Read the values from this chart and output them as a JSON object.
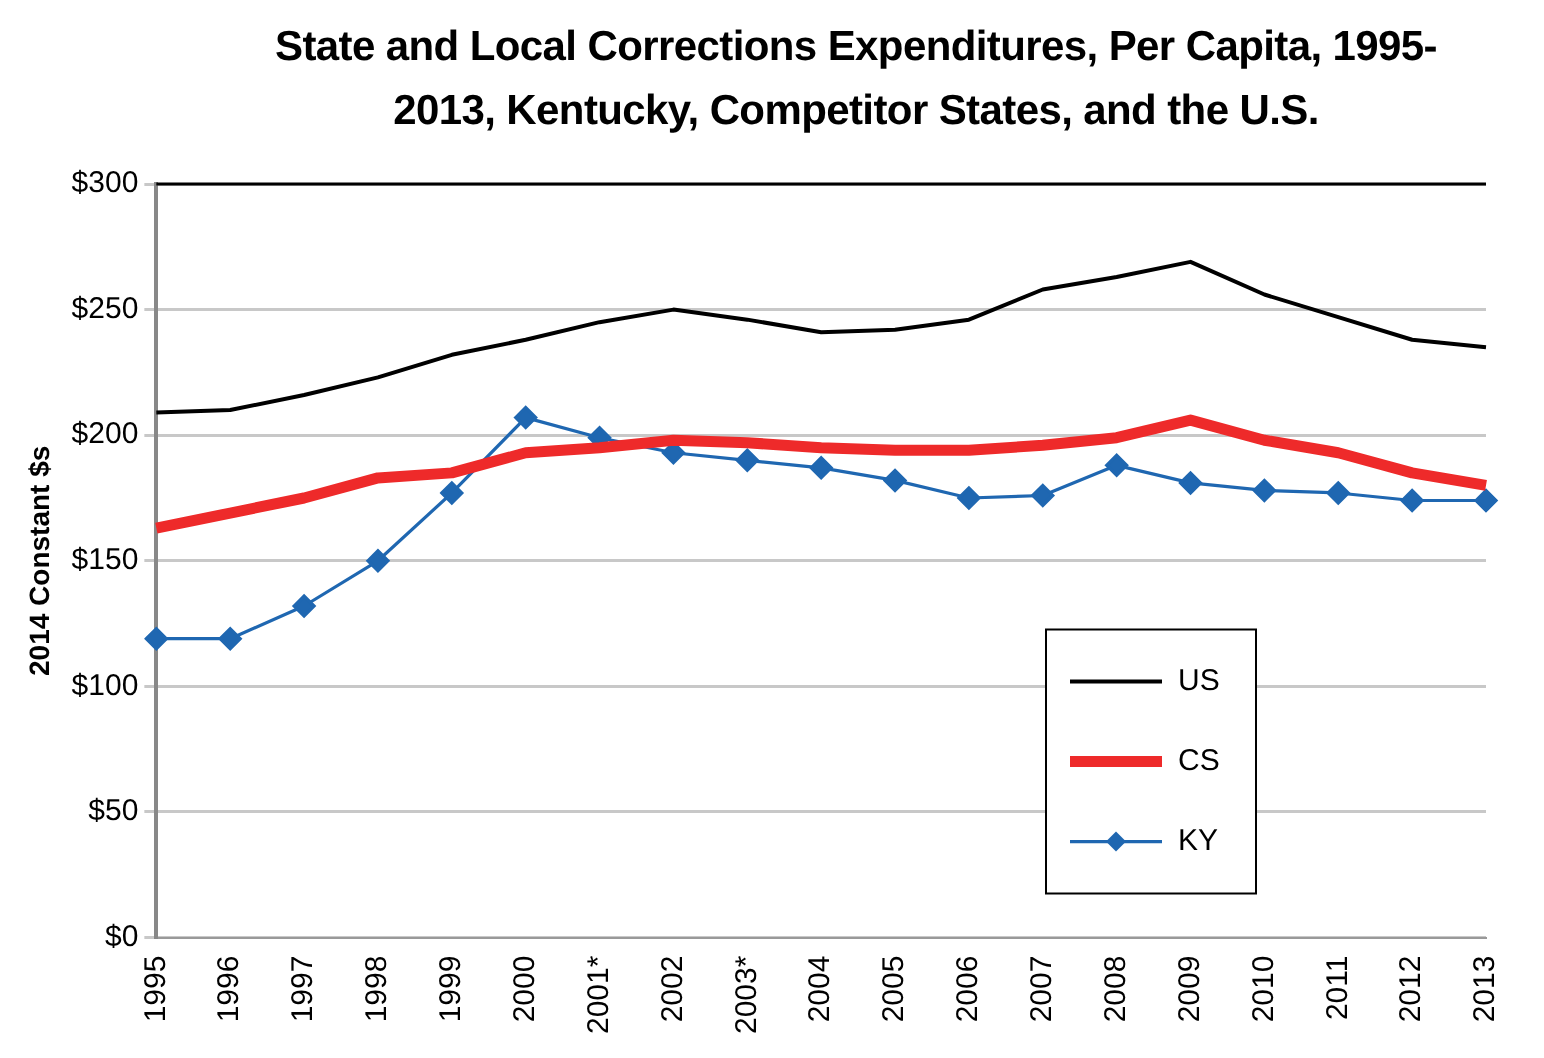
{
  "chart_data": {
    "type": "line",
    "title": "State and Local Corrections Expenditures, Per Capita, 1995-2013, Kentucky, Competitor States, and the U.S.",
    "ylabel": "2014 Constant $s",
    "categories": [
      "1995",
      "1996",
      "1997",
      "1998",
      "1999",
      "2000",
      "2001*",
      "2002",
      "2003*",
      "2004",
      "2005",
      "2006",
      "2007",
      "2008",
      "2009",
      "2010",
      "2011",
      "2012",
      "2013"
    ],
    "series": [
      {
        "name": "US",
        "color": "#000000",
        "values": [
          209,
          210,
          216,
          223,
          232,
          238,
          245,
          250,
          246,
          241,
          242,
          246,
          258,
          263,
          269,
          256,
          247,
          238,
          235
        ]
      },
      {
        "name": "CS",
        "color": "#ee2a2a",
        "values": [
          163,
          169,
          175,
          183,
          185,
          193,
          195,
          198,
          197,
          195,
          194,
          194,
          196,
          199,
          206,
          198,
          193,
          185,
          180
        ]
      },
      {
        "name": "KY",
        "color": "#1f67b1",
        "marker": "diamond",
        "values": [
          119,
          119,
          132,
          150,
          177,
          207,
          199,
          193,
          190,
          187,
          182,
          175,
          176,
          188,
          181,
          178,
          177,
          174,
          174
        ]
      }
    ],
    "ylim": [
      0,
      300
    ],
    "yticks": [
      {
        "value": 0,
        "label": "$0"
      },
      {
        "value": 50,
        "label": "$50"
      },
      {
        "value": 100,
        "label": "$100"
      },
      {
        "value": 150,
        "label": "$150"
      },
      {
        "value": 200,
        "label": "$200"
      },
      {
        "value": 250,
        "label": "$250"
      },
      {
        "value": 300,
        "label": "$300"
      }
    ],
    "grid": "y",
    "legend": "bottom right",
    "marker": "none",
    "line_style": "solid"
  }
}
